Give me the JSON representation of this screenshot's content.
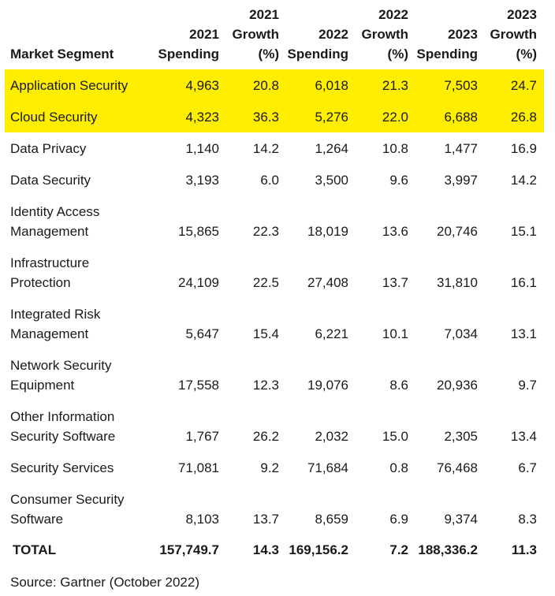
{
  "table": {
    "header": {
      "segment": "Market Segment",
      "cols": [
        [
          "2021",
          "Spending"
        ],
        [
          "2021",
          "Growth",
          "(%)"
        ],
        [
          "2022",
          "Spending"
        ],
        [
          "2022",
          "Growth",
          "(%)"
        ],
        [
          "2023",
          "Spending"
        ],
        [
          "2023",
          "Growth",
          "(%)"
        ]
      ]
    },
    "rows": [
      {
        "segment": [
          "Application Security"
        ],
        "values": [
          "4,963",
          "20.8",
          "6,018",
          "21.3",
          "7,503",
          "24.7"
        ],
        "highlight": true
      },
      {
        "segment": [
          "Cloud Security"
        ],
        "values": [
          "4,323",
          "36.3",
          "5,276",
          "22.0",
          "6,688",
          "26.8"
        ],
        "highlight": true
      },
      {
        "segment": [
          "Data Privacy"
        ],
        "values": [
          "1,140",
          "14.2",
          "1,264",
          "10.8",
          "1,477",
          "16.9"
        ],
        "highlight": false
      },
      {
        "segment": [
          "Data Security"
        ],
        "values": [
          "3,193",
          "6.0",
          "3,500",
          "9.6",
          "3,997",
          "14.2"
        ],
        "highlight": false
      },
      {
        "segment": [
          "Identity Access",
          "Management"
        ],
        "values": [
          "15,865",
          "22.3",
          "18,019",
          "13.6",
          "20,746",
          "15.1"
        ],
        "highlight": false
      },
      {
        "segment": [
          "Infrastructure",
          "Protection"
        ],
        "values": [
          "24,109",
          "22.5",
          "27,408",
          "13.7",
          "31,810",
          "16.1"
        ],
        "highlight": false
      },
      {
        "segment": [
          "Integrated Risk",
          "Management"
        ],
        "values": [
          "5,647",
          "15.4",
          "6,221",
          "10.1",
          "7,034",
          "13.1"
        ],
        "highlight": false
      },
      {
        "segment": [
          "Network Security",
          "Equipment"
        ],
        "values": [
          "17,558",
          "12.3",
          "19,076",
          "8.6",
          "20,936",
          "9.7"
        ],
        "highlight": false
      },
      {
        "segment": [
          "Other Information",
          "Security Software"
        ],
        "values": [
          "1,767",
          "26.2",
          "2,032",
          "15.0",
          "2,305",
          "13.4"
        ],
        "highlight": false
      },
      {
        "segment": [
          "Security Services"
        ],
        "values": [
          "71,081",
          "9.2",
          "71,684",
          "0.8",
          "76,468",
          "6.7"
        ],
        "highlight": false
      },
      {
        "segment": [
          "Consumer Security",
          "Software"
        ],
        "values": [
          "8,103",
          "13.7",
          "8,659",
          "6.9",
          "9,374",
          "8.3"
        ],
        "highlight": false
      }
    ],
    "total": {
      "segment": "TOTAL",
      "values": [
        "157,749.7",
        "14.3",
        "169,156.2",
        "7.2",
        "188,336.2",
        "11.3"
      ]
    }
  },
  "source": "Source: Gartner (October 2022)",
  "colors": {
    "highlight": "#ffee00",
    "text": "#1a1a1a"
  }
}
